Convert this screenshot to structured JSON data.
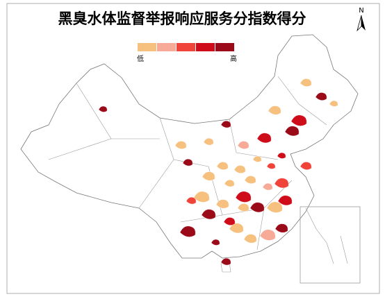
{
  "title": "黑臭水体监督举报响应服务分指数得分",
  "north": "N",
  "legend": {
    "low": "低",
    "high": "高",
    "colors": [
      "#f6c07f",
      "#f8aa98",
      "#f0443a",
      "#cf0d1a",
      "#9b0a18"
    ]
  }
}
